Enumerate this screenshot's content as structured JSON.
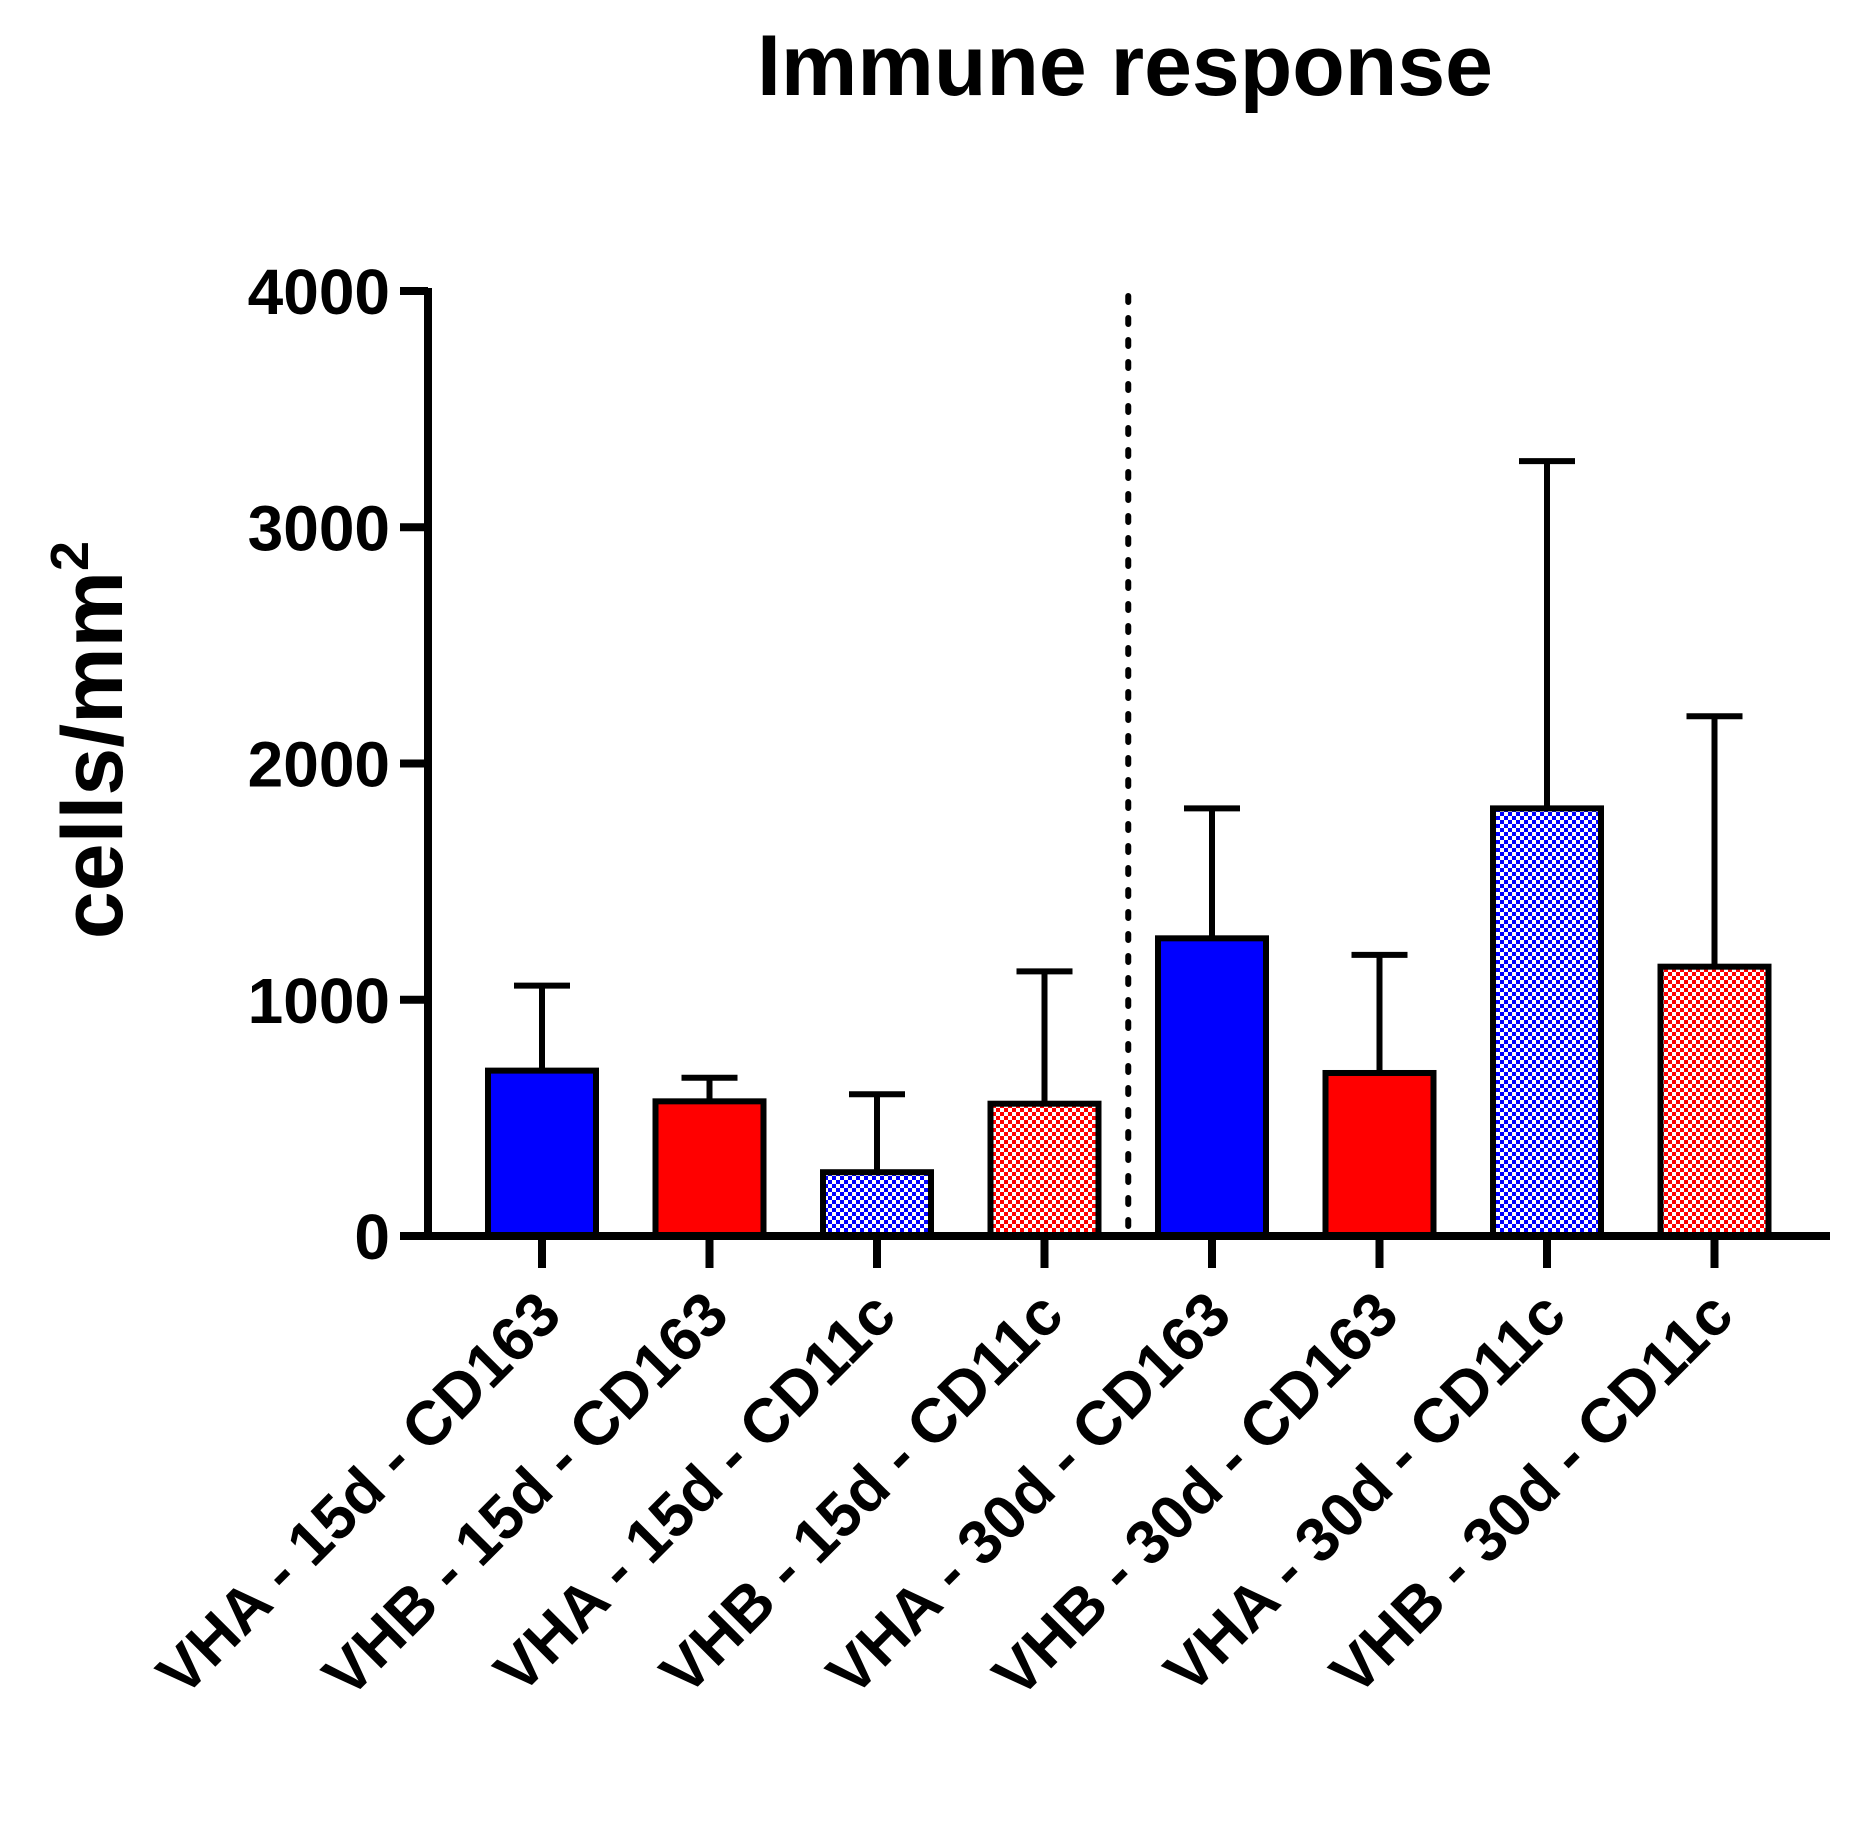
{
  "chart_data": {
    "type": "bar",
    "title": "Immune response",
    "ylabel": "cells/mm",
    "ylabel_superscript": "2",
    "xlabel": "",
    "ylim": [
      0,
      4000
    ],
    "yticks": [
      0,
      1000,
      2000,
      3000,
      4000
    ],
    "ytick_labels": [
      "0",
      "1000",
      "2000",
      "3000",
      "4000"
    ],
    "categories": [
      "VHA - 15d - CD163",
      "VHB - 15d - CD163",
      "VHA - 15d - CD11c",
      "VHB - 15d - CD11c",
      "VHA - 30d - CD163",
      "VHB - 30d - CD163",
      "VHA - 30d - CD11c",
      "VHB - 30d - CD11c"
    ],
    "values": [
      700,
      570,
      270,
      560,
      1260,
      690,
      1810,
      1140
    ],
    "error_upper": [
      1060,
      670,
      600,
      1120,
      1810,
      1190,
      3280,
      2200
    ],
    "styles": [
      {
        "color": "#0000ff",
        "pattern": "solid"
      },
      {
        "color": "#ff0000",
        "pattern": "solid"
      },
      {
        "color": "#0000ff",
        "pattern": "checker"
      },
      {
        "color": "#ff0000",
        "pattern": "checker"
      },
      {
        "color": "#0000ff",
        "pattern": "solid"
      },
      {
        "color": "#ff0000",
        "pattern": "solid"
      },
      {
        "color": "#0000ff",
        "pattern": "checker"
      },
      {
        "color": "#ff0000",
        "pattern": "checker"
      }
    ],
    "separator_after_index": 3,
    "grid": false,
    "legend": "none"
  }
}
